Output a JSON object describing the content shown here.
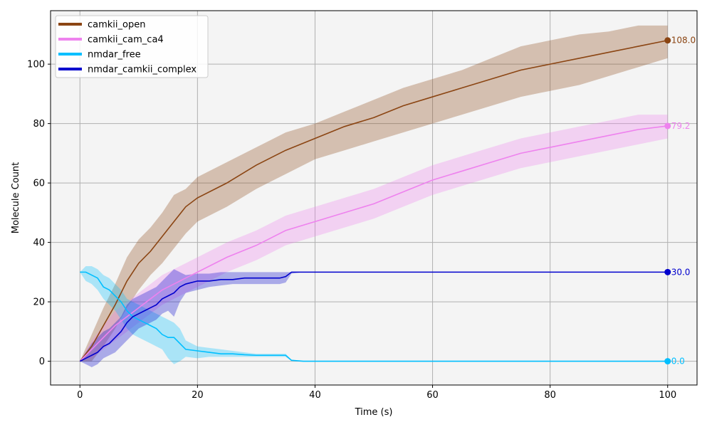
{
  "chart_data": {
    "type": "line",
    "xlabel": "Time (s)",
    "ylabel": "Molecule Count",
    "xlim": [
      -5,
      105
    ],
    "ylim": [
      -8,
      118
    ],
    "xticks": [
      0,
      20,
      40,
      60,
      80,
      100
    ],
    "yticks": [
      0,
      20,
      40,
      60,
      80,
      100
    ],
    "grid": true,
    "legend_position": "top-left",
    "plot_background": "#f4f4f4",
    "series": [
      {
        "name": "camkii_open",
        "color": "#8b4513",
        "end_label": "108.0",
        "x": [
          0,
          2,
          4,
          6,
          8,
          10,
          12,
          14,
          16,
          18,
          20,
          25,
          30,
          35,
          40,
          45,
          50,
          55,
          60,
          65,
          70,
          75,
          80,
          85,
          90,
          95,
          100
        ],
        "y": [
          0,
          5,
          12,
          19,
          27,
          33,
          37,
          42,
          47,
          52,
          55,
          60,
          66,
          71,
          75,
          79,
          82,
          86,
          89,
          92,
          95,
          98,
          100,
          102,
          104,
          106,
          108
        ],
        "lower": [
          0,
          0,
          5,
          11,
          18,
          24,
          29,
          33,
          38,
          43,
          47,
          52,
          58,
          63,
          68,
          71,
          74,
          77,
          80,
          83,
          86,
          89,
          91,
          93,
          96,
          99,
          102
        ],
        "upper": [
          0,
          9,
          18,
          26,
          35,
          41,
          45,
          50,
          56,
          58,
          62,
          67,
          72,
          77,
          80,
          84,
          88,
          92,
          95,
          98,
          102,
          106,
          108,
          110,
          111,
          113,
          113
        ]
      },
      {
        "name": "camkii_cam_ca4",
        "color": "#ee82ee",
        "end_label": "79.2",
        "x": [
          0,
          2,
          4,
          6,
          8,
          10,
          12,
          14,
          16,
          18,
          20,
          25,
          30,
          35,
          40,
          45,
          50,
          55,
          60,
          65,
          70,
          75,
          80,
          85,
          90,
          95,
          100
        ],
        "y": [
          0,
          4,
          8,
          12,
          15,
          18,
          21,
          24,
          26,
          28,
          30,
          35,
          39,
          44,
          47,
          50,
          53,
          57,
          61,
          64,
          67,
          70,
          72,
          74,
          76,
          78,
          79.2
        ],
        "lower": [
          0,
          1,
          4,
          7,
          10,
          13,
          16,
          19,
          21,
          23,
          25,
          30,
          34,
          39,
          42,
          45,
          48,
          52,
          56,
          59,
          62,
          65,
          67,
          69,
          71,
          73,
          75
        ],
        "upper": [
          0,
          7,
          12,
          17,
          20,
          23,
          26,
          29,
          31,
          33,
          35,
          40,
          44,
          49,
          52,
          55,
          58,
          62,
          66,
          69,
          72,
          75,
          77,
          79,
          81,
          83,
          83
        ]
      },
      {
        "name": "nmdar_free",
        "color": "#00bfff",
        "end_label": "0.0",
        "x": [
          0,
          1,
          2,
          3,
          4,
          5,
          6,
          7,
          8,
          9,
          10,
          11,
          12,
          13,
          14,
          15,
          16,
          17,
          18,
          20,
          22,
          24,
          26,
          28,
          30,
          32,
          34,
          35,
          36,
          38,
          40,
          50,
          60,
          70,
          80,
          90,
          100
        ],
        "y": [
          30,
          30,
          29,
          28,
          25,
          24,
          22,
          20,
          17,
          15,
          14,
          13,
          12,
          11,
          9,
          8,
          8,
          6,
          4,
          3.5,
          3,
          2.5,
          2.5,
          2.2,
          2,
          2,
          2,
          2,
          0.3,
          0,
          0,
          0,
          0,
          0,
          0,
          0,
          0
        ],
        "lower": [
          30,
          27,
          26,
          24,
          21,
          19,
          17,
          14,
          11,
          9,
          8,
          7,
          6,
          5,
          4,
          1,
          -1,
          0,
          1.5,
          1,
          1.5,
          1.5,
          1.5,
          1.5,
          1.5,
          1.5,
          1.5,
          1.5,
          0.1,
          0,
          0,
          0,
          0,
          0,
          0,
          0,
          0
        ],
        "upper": [
          30,
          32,
          32,
          31,
          29,
          28,
          26,
          24,
          21,
          20,
          19,
          18,
          17,
          16,
          15,
          14,
          13,
          11,
          7,
          5,
          4.5,
          4,
          3.5,
          3,
          2.5,
          2.5,
          2.5,
          2.5,
          0.5,
          0,
          0,
          0,
          0,
          0,
          0,
          0,
          0
        ]
      },
      {
        "name": "nmdar_camkii_complex",
        "color": "#0000cd",
        "end_label": "30.0",
        "x": [
          0,
          1,
          2,
          3,
          4,
          5,
          6,
          7,
          8,
          9,
          10,
          11,
          12,
          13,
          14,
          15,
          16,
          17,
          18,
          20,
          22,
          24,
          26,
          28,
          30,
          32,
          34,
          35,
          36,
          38,
          40,
          50,
          60,
          70,
          80,
          90,
          100
        ],
        "y": [
          0,
          1,
          2,
          3,
          5,
          6,
          8,
          10,
          13,
          15,
          16,
          17,
          18,
          19,
          21,
          22,
          23,
          25,
          26,
          27,
          27,
          27.5,
          27.5,
          28,
          28,
          28,
          28,
          28.5,
          30,
          30,
          30,
          30,
          30,
          30,
          30,
          30,
          30
        ],
        "lower": [
          0,
          -1,
          -2,
          -1,
          1,
          2,
          3,
          5,
          7,
          9,
          11,
          12,
          13,
          14,
          16,
          17,
          15,
          20,
          23,
          24,
          25,
          25.5,
          26,
          26,
          26,
          26,
          26,
          26.5,
          29.5,
          30,
          30,
          30,
          30,
          30,
          30,
          30,
          30
        ],
        "upper": [
          0,
          3,
          6,
          8,
          10,
          11,
          13,
          15,
          19,
          21,
          22,
          23,
          24,
          25,
          27,
          29,
          31,
          30,
          29,
          29.5,
          29.5,
          30,
          30,
          30,
          30,
          30,
          30,
          30,
          30,
          30,
          30,
          30,
          30,
          30,
          30,
          30,
          30
        ]
      }
    ]
  }
}
